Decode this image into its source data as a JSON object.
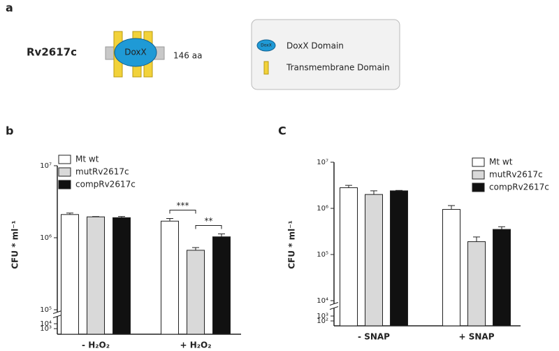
{
  "diagram": {
    "panel_label": "a",
    "protein": "Rv2617c",
    "domain": "DoxX",
    "length": "146 aa",
    "legend": [
      {
        "icon": "DoxX",
        "label": "DoxX Domain"
      },
      {
        "label": "Transmembrane Domain"
      }
    ]
  },
  "chart_data": [
    {
      "type": "bar",
      "panel_label": "b",
      "y_label": "CFU * ml⁻¹",
      "log_scale": true,
      "legend": "top-left",
      "categories": [
        "- H₂O₂",
        "+ H₂O₂"
      ],
      "series": [
        {
          "name": "Mt wt",
          "color": "#ffffff",
          "values": [
            2100000,
            1700000
          ],
          "errors": [
            100000,
            150000
          ]
        },
        {
          "name": "mutRv2617c",
          "color": "#d9d9d9",
          "values": [
            1950000,
            670000
          ],
          "errors": [
            20000,
            60000
          ]
        },
        {
          "name": "compRv2617c",
          "color": "#111111",
          "values": [
            1900000,
            1030000
          ],
          "errors": [
            70000,
            100000
          ]
        }
      ],
      "annotations": [
        {
          "text": "***"
        },
        {
          "text": "**"
        }
      ],
      "ylim": [
        1000,
        10000000
      ],
      "yticks": [
        {
          "value": 1000,
          "label": "10³"
        },
        {
          "value": 10000,
          "label": "10⁴"
        },
        {
          "value": 100000,
          "label": "10⁵"
        },
        {
          "value": 1000000,
          "label": "10⁶"
        },
        {
          "value": 10000000,
          "label": "10⁷"
        }
      ]
    },
    {
      "type": "bar",
      "panel_label": "C",
      "y_label": "CFU * ml⁻¹",
      "log_scale": true,
      "legend": "top-right",
      "categories": [
        "- SNAP",
        "+ SNAP"
      ],
      "series": [
        {
          "name": "Mt wt",
          "color": "#ffffff",
          "values": [
            2800000,
            950000
          ],
          "errors": [
            350000,
            200000
          ]
        },
        {
          "name": "mutRv2617c",
          "color": "#d9d9d9",
          "values": [
            2000000,
            190000
          ],
          "errors": [
            400000,
            50000
          ]
        },
        {
          "name": "compRv2617c",
          "color": "#111111",
          "values": [
            2400000,
            350000
          ],
          "errors": [
            50000,
            50000
          ]
        }
      ],
      "ylim": [
        100,
        10000000
      ],
      "yticks": [
        {
          "value": 100,
          "label": "10²"
        },
        {
          "value": 1000,
          "label": "10³"
        },
        {
          "value": 10000,
          "label": "10⁴"
        },
        {
          "value": 100000,
          "label": "10⁵"
        },
        {
          "value": 1000000,
          "label": "10⁶"
        },
        {
          "value": 10000000,
          "label": "10⁷"
        }
      ]
    }
  ]
}
